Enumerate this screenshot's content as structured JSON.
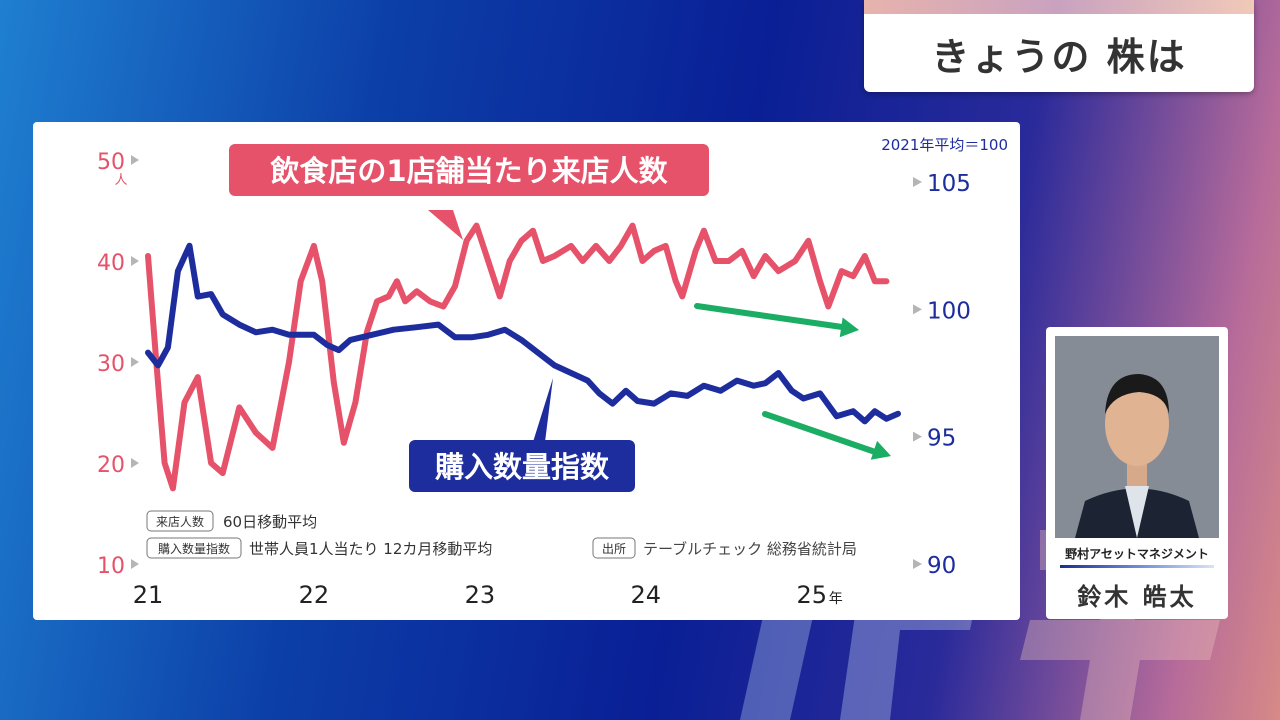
{
  "header": {
    "title": "きょうの 株は"
  },
  "chart_data": {
    "type": "line",
    "title": "",
    "x_ticks": [
      "21",
      "22",
      "23",
      "24",
      "25"
    ],
    "x_unit": "年",
    "x_range": [
      2021.0,
      2025.55
    ],
    "left_axis": {
      "ticks": [
        10,
        20,
        30,
        40,
        50
      ],
      "unit": "人",
      "range": [
        10,
        50
      ]
    },
    "right_axis": {
      "ticks": [
        90,
        95,
        100,
        105
      ],
      "note": "2021年平均＝100",
      "range": [
        90,
        105
      ]
    },
    "series": [
      {
        "name": "飲食店の1店舗当たり来店人数",
        "axis": "left",
        "color": "#e5526a",
        "points": [
          [
            2021.0,
            40.5
          ],
          [
            2021.05,
            30
          ],
          [
            2021.1,
            20
          ],
          [
            2021.15,
            17.5
          ],
          [
            2021.22,
            26
          ],
          [
            2021.3,
            28.5
          ],
          [
            2021.38,
            20
          ],
          [
            2021.45,
            19
          ],
          [
            2021.55,
            25.5
          ],
          [
            2021.65,
            23
          ],
          [
            2021.75,
            21.5
          ],
          [
            2021.85,
            30
          ],
          [
            2021.92,
            38
          ],
          [
            2022.0,
            41.5
          ],
          [
            2022.05,
            38
          ],
          [
            2022.12,
            28
          ],
          [
            2022.18,
            22
          ],
          [
            2022.25,
            26
          ],
          [
            2022.32,
            33
          ],
          [
            2022.38,
            36
          ],
          [
            2022.45,
            36.5
          ],
          [
            2022.5,
            38
          ],
          [
            2022.55,
            36
          ],
          [
            2022.62,
            37
          ],
          [
            2022.7,
            36
          ],
          [
            2022.78,
            35.5
          ],
          [
            2022.85,
            37.5
          ],
          [
            2022.92,
            42
          ],
          [
            2022.98,
            43.5
          ],
          [
            2023.05,
            40
          ],
          [
            2023.12,
            36.5
          ],
          [
            2023.18,
            40
          ],
          [
            2023.25,
            42
          ],
          [
            2023.32,
            43
          ],
          [
            2023.38,
            40
          ],
          [
            2023.45,
            40.5
          ],
          [
            2023.55,
            41.5
          ],
          [
            2023.62,
            40
          ],
          [
            2023.7,
            41.5
          ],
          [
            2023.78,
            40
          ],
          [
            2023.85,
            41.5
          ],
          [
            2023.92,
            43.5
          ],
          [
            2023.98,
            40
          ],
          [
            2024.05,
            41
          ],
          [
            2024.12,
            41.5
          ],
          [
            2024.18,
            38
          ],
          [
            2024.22,
            36.5
          ],
          [
            2024.3,
            41
          ],
          [
            2024.35,
            43
          ],
          [
            2024.42,
            40
          ],
          [
            2024.5,
            40
          ],
          [
            2024.58,
            41
          ],
          [
            2024.65,
            38.5
          ],
          [
            2024.72,
            40.5
          ],
          [
            2024.8,
            39
          ],
          [
            2024.9,
            40
          ],
          [
            2024.98,
            42
          ],
          [
            2025.05,
            38
          ],
          [
            2025.1,
            35.5
          ],
          [
            2025.18,
            39
          ],
          [
            2025.25,
            38.5
          ],
          [
            2025.32,
            40.5
          ],
          [
            2025.38,
            38
          ],
          [
            2025.45,
            38
          ]
        ]
      },
      {
        "name": "購入数量指数",
        "axis": "right",
        "color": "#1e2d9e",
        "points": [
          [
            2021.0,
            98.3
          ],
          [
            2021.06,
            97.8
          ],
          [
            2021.12,
            98.5
          ],
          [
            2021.18,
            101.5
          ],
          [
            2021.25,
            102.5
          ],
          [
            2021.3,
            100.5
          ],
          [
            2021.38,
            100.6
          ],
          [
            2021.45,
            99.8
          ],
          [
            2021.55,
            99.4
          ],
          [
            2021.65,
            99.1
          ],
          [
            2021.75,
            99.2
          ],
          [
            2021.85,
            99.0
          ],
          [
            2022.0,
            99.0
          ],
          [
            2022.08,
            98.6
          ],
          [
            2022.15,
            98.4
          ],
          [
            2022.22,
            98.8
          ],
          [
            2022.35,
            99.0
          ],
          [
            2022.48,
            99.2
          ],
          [
            2022.62,
            99.3
          ],
          [
            2022.75,
            99.4
          ],
          [
            2022.85,
            98.9
          ],
          [
            2022.95,
            98.9
          ],
          [
            2023.05,
            99.0
          ],
          [
            2023.15,
            99.2
          ],
          [
            2023.25,
            98.8
          ],
          [
            2023.35,
            98.3
          ],
          [
            2023.45,
            97.8
          ],
          [
            2023.55,
            97.5
          ],
          [
            2023.65,
            97.2
          ],
          [
            2023.72,
            96.7
          ],
          [
            2023.8,
            96.3
          ],
          [
            2023.88,
            96.8
          ],
          [
            2023.95,
            96.4
          ],
          [
            2024.05,
            96.3
          ],
          [
            2024.15,
            96.7
          ],
          [
            2024.25,
            96.6
          ],
          [
            2024.35,
            97.0
          ],
          [
            2024.45,
            96.8
          ],
          [
            2024.55,
            97.2
          ],
          [
            2024.65,
            97.0
          ],
          [
            2024.72,
            97.1
          ],
          [
            2024.8,
            97.5
          ],
          [
            2024.88,
            96.8
          ],
          [
            2024.95,
            96.5
          ],
          [
            2025.05,
            96.7
          ],
          [
            2025.15,
            95.8
          ],
          [
            2025.25,
            96.0
          ],
          [
            2025.32,
            95.6
          ],
          [
            2025.38,
            96.0
          ],
          [
            2025.45,
            95.7
          ],
          [
            2025.52,
            95.9
          ]
        ]
      }
    ],
    "labels": {
      "series1_label": "飲食店の1店舗当たり来店人数",
      "series2_label": "購入数量指数"
    },
    "notes": {
      "tag1": "来店人数",
      "note1": "60日移動平均",
      "tag2": "購入数量指数",
      "note2": "世帯人員1人当たり 12カ月移動平均",
      "tag3": "出所",
      "note3": "テーブルチェック 総務省統計局"
    },
    "trend_arrow_color": "#1aad63"
  },
  "person": {
    "org": "野村アセットマネジメント",
    "name": "鈴木 皓太"
  },
  "icons": [
    "person-photo",
    "trend-arrow-icon"
  ]
}
